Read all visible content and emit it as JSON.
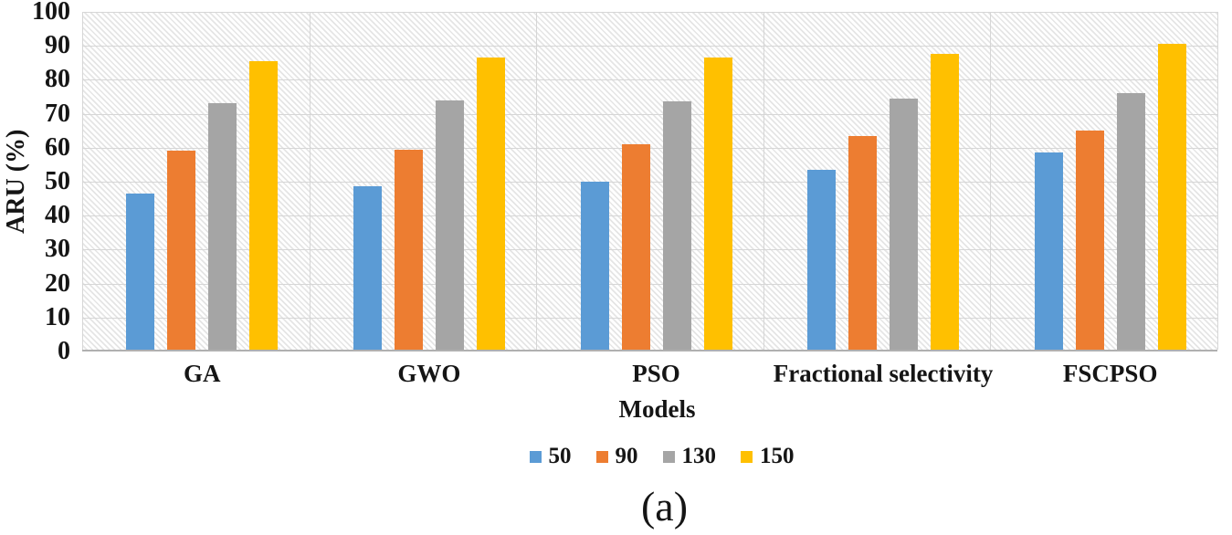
{
  "chart_data": {
    "type": "bar",
    "title": "",
    "caption": "(a)",
    "xlabel": "Models",
    "ylabel": "ARU (%)",
    "ylim": [
      0,
      100
    ],
    "yticks": [
      0,
      10,
      20,
      30,
      40,
      50,
      60,
      70,
      80,
      90,
      100
    ],
    "grid": "horizontal-gridlines-and-category-separators",
    "plot_background": "diagonal-hatch",
    "legend_position": "bottom",
    "categories": [
      "GA",
      "GWO",
      "PSO",
      "Fractional selectivity",
      "FSCPSO"
    ],
    "series": [
      {
        "name": "50",
        "color": "#5B9BD5",
        "values": [
          46,
          48,
          49.5,
          53,
          58
        ]
      },
      {
        "name": "90",
        "color": "#ED7D31",
        "values": [
          58.5,
          59,
          60.5,
          63,
          64.5
        ]
      },
      {
        "name": "130",
        "color": "#A5A5A5",
        "values": [
          72.5,
          73.5,
          73,
          74,
          75.5
        ]
      },
      {
        "name": "150",
        "color": "#FFC000",
        "values": [
          85,
          86,
          86,
          87,
          90
        ]
      }
    ],
    "colors": {
      "gridline": "#d6d6d6",
      "axis_line": "#b0b0b0",
      "text": "#151515"
    }
  }
}
